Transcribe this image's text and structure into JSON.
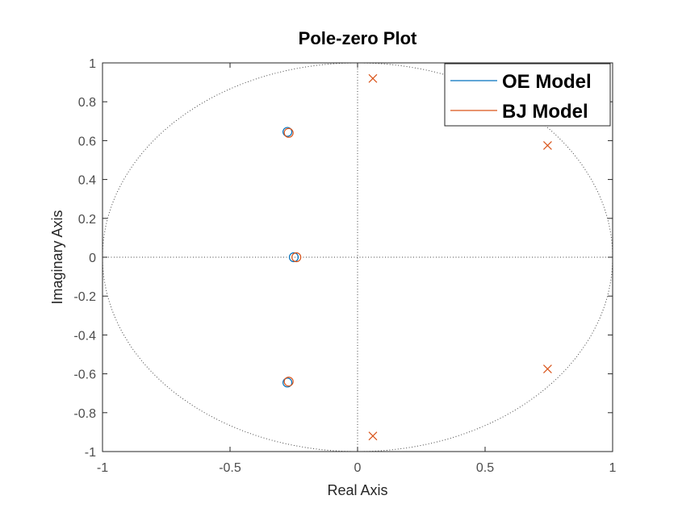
{
  "chart_data": {
    "type": "scatter",
    "title": "Pole-zero Plot",
    "xlabel": "Real Axis",
    "ylabel": "Imaginary Axis",
    "xlim": [
      -1,
      1
    ],
    "ylim": [
      -1,
      1
    ],
    "x_ticks": [
      "-1",
      "-0.5",
      "0",
      "0.5",
      "1"
    ],
    "y_ticks": [
      "-1",
      "-0.8",
      "-0.6",
      "-0.4",
      "-0.2",
      "0",
      "0.2",
      "0.4",
      "0.6",
      "0.8",
      "1"
    ],
    "unit_circle": true,
    "grid": false,
    "legend_position": "top-right",
    "series": [
      {
        "name": "OE Model",
        "color": "#0072bd",
        "zeros": [
          {
            "x": -0.275,
            "y": 0.645
          },
          {
            "x": -0.275,
            "y": -0.645
          },
          {
            "x": -0.25,
            "y": 0.0
          }
        ],
        "poles": []
      },
      {
        "name": "BJ Model",
        "color": "#d95319",
        "zeros": [
          {
            "x": -0.27,
            "y": 0.64
          },
          {
            "x": -0.27,
            "y": -0.64
          },
          {
            "x": -0.24,
            "y": 0.0
          }
        ],
        "poles": [
          {
            "x": 0.06,
            "y": 0.92
          },
          {
            "x": 0.06,
            "y": -0.92
          },
          {
            "x": 0.745,
            "y": 0.575
          },
          {
            "x": 0.745,
            "y": -0.575
          }
        ]
      }
    ]
  }
}
